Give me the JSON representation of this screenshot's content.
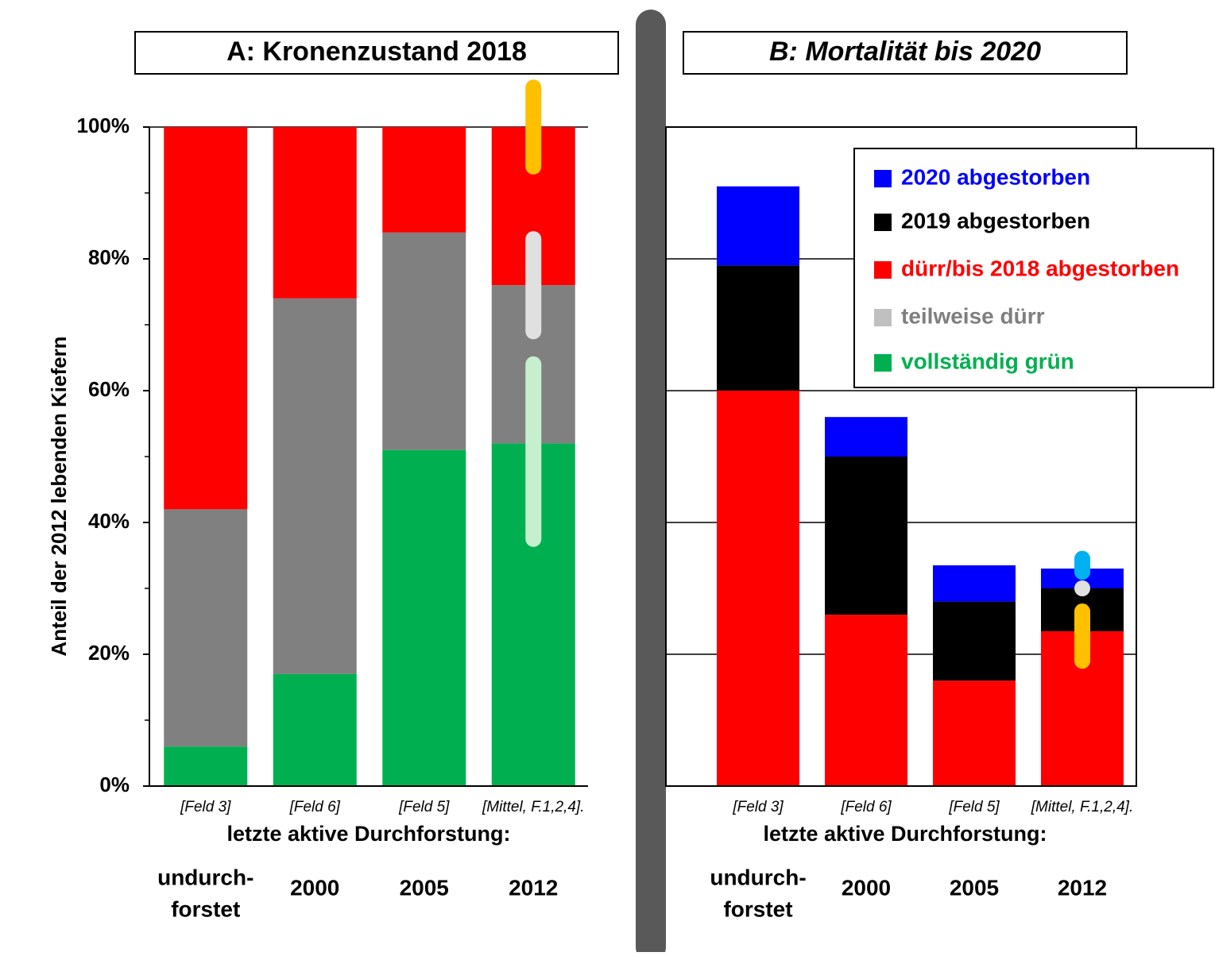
{
  "chart_data": [
    {
      "type": "stacked_bar",
      "title": "A: Kronenzustand 2018",
      "ylabel": "Anteil der 2012 lebenden Kiefern",
      "xlabel": "letzte aktive Durchforstung:",
      "categories": [
        "[Feld 3]",
        "[Feld 6]",
        "[Feld 5]",
        "[Mittel, F.1,2,4]."
      ],
      "groups": [
        [
          "undurch-",
          "forstet"
        ],
        [
          "2000"
        ],
        [
          "2005"
        ],
        [
          "2012"
        ]
      ],
      "ylim": [
        0,
        100
      ],
      "yticks": [
        {
          "value": 0,
          "label": "0%"
        },
        {
          "value": 20,
          "label": "20%"
        },
        {
          "value": 40,
          "label": "40%"
        },
        {
          "value": 60,
          "label": "60%"
        },
        {
          "value": 80,
          "label": "80%"
        },
        {
          "value": 100,
          "label": "100%"
        }
      ],
      "yminorticks": [
        10,
        30,
        50,
        70,
        90
      ],
      "tick_labels": true,
      "grid": false,
      "series": [
        {
          "color": "#00b050",
          "values": [
            6,
            17,
            51,
            52
          ]
        },
        {
          "color": "#808080",
          "values": [
            36,
            57,
            33,
            24
          ]
        },
        {
          "color": "#ff0000",
          "values": [
            58,
            26,
            16,
            24
          ]
        }
      ],
      "range_markers": [
        {
          "category": 3,
          "color": "#ffc000",
          "low": 94,
          "high": 106
        },
        {
          "category": 3,
          "color": "#e0e0e0",
          "low": 69,
          "high": 83
        },
        {
          "category": 3,
          "color": "#c6efce",
          "low": 37.5,
          "high": 64
        }
      ]
    },
    {
      "type": "stacked_bar",
      "title": "B: Mortalität bis 2020",
      "xlabel": "letzte aktive Durchforstung:",
      "categories": [
        "[Feld 3]",
        "[Feld 6]",
        "[Feld 5]",
        "[Mittel, F.1,2,4]."
      ],
      "groups": [
        [
          "undurch-",
          "forstet"
        ],
        [
          "2000"
        ],
        [
          "2005"
        ],
        [
          "2012"
        ]
      ],
      "ylim": [
        0,
        100
      ],
      "yticks": [
        0,
        20,
        40,
        60,
        80,
        100
      ],
      "tick_labels": false,
      "grid": true,
      "series": [
        {
          "color": "#ff0000",
          "values": [
            60,
            26,
            16,
            23.5
          ]
        },
        {
          "color": "#000000",
          "values": [
            19,
            24,
            12,
            6.5
          ]
        },
        {
          "color": "#0000ff",
          "values": [
            12,
            6,
            5.5,
            3
          ]
        }
      ],
      "range_markers": [
        {
          "category": 3,
          "color": "#00b0f0",
          "low": 32.5,
          "high": 34.5
        },
        {
          "category": 3,
          "color": "#e0e0e0",
          "low": 30,
          "high": 30
        },
        {
          "category": 3,
          "color": "#ffc000",
          "low": 19,
          "high": 26.5
        }
      ]
    }
  ],
  "legend": [
    {
      "name": "2020 abgestorben",
      "color": "#0000ff"
    },
    {
      "name": "2019 abgestorben",
      "color": "#000000"
    },
    {
      "name": "dürr/bis 2018 abgestorben",
      "color": "#ff0000"
    },
    {
      "name": "teilweise dürr",
      "color": "#c0c0c0"
    },
    {
      "name": "vollständig grün",
      "color": "#00b050"
    }
  ]
}
